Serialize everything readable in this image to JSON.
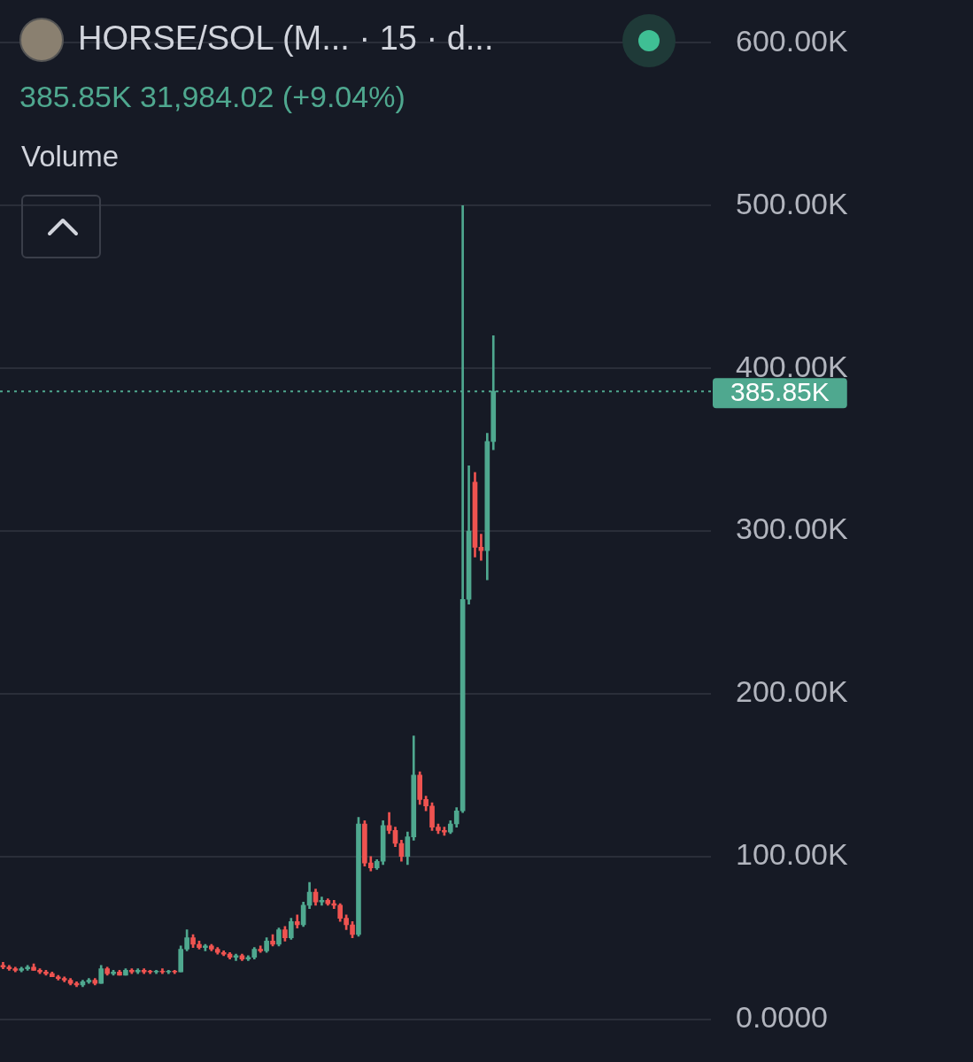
{
  "chart_data": {
    "type": "candlestick",
    "title": "HORSE/SOL (M... · 15 · d...",
    "subtitle": "385.85K 31,984.02 (+9.04%)",
    "annotations": [
      "Volume"
    ],
    "categories": [
      null,
      null,
      null,
      null,
      null,
      null,
      null,
      null,
      null,
      null,
      null,
      null,
      null,
      null,
      null,
      null,
      null,
      null,
      null,
      null,
      null,
      null,
      null,
      null,
      null,
      null,
      null,
      null,
      null,
      null,
      null,
      null,
      null,
      null,
      null,
      null,
      null,
      null,
      null,
      null,
      null,
      null,
      null,
      null,
      null,
      null,
      null,
      null,
      null,
      null,
      null,
      null,
      null,
      null,
      null,
      null,
      null,
      null,
      null,
      null,
      null,
      null,
      null,
      null,
      null,
      null,
      null,
      null,
      null,
      null,
      null,
      null,
      null,
      null,
      null,
      null,
      null,
      null,
      null,
      null,
      null,
      null,
      null,
      null,
      null,
      null,
      null,
      null,
      null,
      null,
      null,
      null,
      null,
      null,
      null,
      null,
      null,
      null,
      null,
      null,
      null,
      null,
      null,
      null,
      null,
      null,
      null,
      null,
      null,
      null,
      null,
      null,
      null,
      null,
      null,
      null
    ],
    "open": [
      33000,
      32000,
      31000,
      30000,
      31000,
      32000,
      30000,
      29000,
      28000,
      26000,
      25000,
      24000,
      22000,
      21000,
      23000,
      24000,
      22000,
      31000,
      28000,
      29000,
      27000,
      30000,
      29000,
      30000,
      29500,
      29000,
      29500,
      29000,
      29500,
      29000,
      43000,
      50000,
      46000,
      44000,
      45000,
      43000,
      41000,
      40000,
      38000,
      39000,
      37000,
      38000,
      43000,
      42000,
      48000,
      46000,
      55000,
      50000,
      60000,
      58000,
      70000,
      78000,
      72000,
      73000,
      71000,
      70000,
      62000,
      58000,
      52000,
      120000,
      96000,
      93000,
      97000,
      119000,
      116000,
      108000,
      100000,
      112000,
      150000,
      135000,
      131000,
      118000,
      116000,
      115000,
      120000,
      128000,
      258000,
      330000,
      290000,
      288000,
      355000,
      null,
      null,
      null,
      null,
      null,
      null,
      null,
      null,
      null,
      null,
      null,
      null,
      null,
      null,
      null,
      null,
      null,
      null,
      null,
      null,
      null,
      null,
      null,
      null,
      null,
      null,
      null,
      null,
      null,
      null,
      null,
      null,
      null,
      null,
      null
    ],
    "high": [
      35000,
      33000,
      32000,
      32000,
      33000,
      34000,
      31000,
      30000,
      29000,
      27000,
      26000,
      25000,
      23000,
      24000,
      25000,
      25000,
      33000,
      32000,
      30000,
      30000,
      31000,
      31000,
      31000,
      31000,
      30000,
      30000,
      31000,
      30000,
      30000,
      45000,
      55000,
      52000,
      48000,
      46000,
      46000,
      44000,
      42000,
      41000,
      40000,
      40000,
      39000,
      44000,
      45000,
      50000,
      52000,
      56000,
      57000,
      62000,
      64000,
      72000,
      84000,
      80000,
      75000,
      74000,
      73000,
      71000,
      64000,
      60000,
      124000,
      122000,
      100000,
      98000,
      122000,
      127000,
      118000,
      110000,
      115000,
      174000,
      152000,
      137000,
      133000,
      120000,
      118000,
      122000,
      130000,
      500000,
      340000,
      336000,
      298000,
      360000,
      420000,
      null,
      null,
      null,
      null,
      null,
      null,
      null,
      null,
      null,
      null,
      null,
      null,
      null,
      null,
      null,
      null,
      null,
      null,
      null,
      null,
      null,
      null,
      null,
      null,
      null,
      null,
      null,
      null,
      null,
      null,
      null,
      null,
      null,
      null,
      null
    ],
    "low": [
      31000,
      30000,
      29000,
      29000,
      30000,
      30000,
      28000,
      27000,
      26000,
      24000,
      23000,
      21000,
      20000,
      20000,
      22000,
      21000,
      22000,
      27000,
      27000,
      27000,
      27000,
      28000,
      28000,
      28000,
      28000,
      28000,
      28000,
      28000,
      28000,
      29000,
      42000,
      44000,
      43000,
      42000,
      42000,
      40000,
      39000,
      37000,
      36000,
      36000,
      36000,
      37000,
      41000,
      41000,
      45000,
      45000,
      48000,
      49000,
      56000,
      57000,
      68000,
      70000,
      70000,
      70000,
      68000,
      60000,
      55000,
      50000,
      51000,
      94000,
      91000,
      92000,
      95000,
      114000,
      106000,
      97000,
      95000,
      110000,
      132000,
      128000,
      116000,
      114000,
      113000,
      114000,
      118000,
      127000,
      255000,
      284000,
      282000,
      270000,
      350000,
      null,
      null,
      null,
      null,
      null,
      null,
      null,
      null,
      null,
      null,
      null,
      null,
      null,
      null,
      null,
      null,
      null,
      null,
      null,
      null,
      null,
      null,
      null,
      null,
      null,
      null,
      null,
      null,
      null,
      null,
      null,
      null,
      null,
      null,
      null
    ],
    "close": [
      32000,
      31000,
      30000,
      31000,
      32000,
      30000,
      29000,
      28000,
      26000,
      25000,
      24000,
      22000,
      21000,
      23000,
      24000,
      22000,
      31000,
      28000,
      29000,
      27000,
      30000,
      29000,
      30000,
      29000,
      29000,
      29500,
      29000,
      29500,
      29000,
      43000,
      50000,
      46000,
      44000,
      45000,
      43000,
      41000,
      40000,
      38000,
      39000,
      37000,
      38000,
      43000,
      42000,
      48000,
      46000,
      55000,
      50000,
      60000,
      58000,
      70000,
      78000,
      72000,
      73000,
      71000,
      70000,
      62000,
      58000,
      52000,
      120000,
      96000,
      93000,
      97000,
      119000,
      116000,
      108000,
      100000,
      112000,
      150000,
      135000,
      131000,
      118000,
      116000,
      115000,
      120000,
      128000,
      258000,
      300000,
      290000,
      288000,
      355000,
      385850,
      null,
      null,
      null,
      null,
      null,
      null,
      null,
      null,
      null,
      null,
      null,
      null,
      null,
      null,
      null,
      null,
      null,
      null,
      null,
      null,
      null,
      null,
      null,
      null,
      null,
      null,
      null,
      null,
      null,
      null,
      null,
      null,
      null,
      null,
      null
    ],
    "colors": [
      "#ef5350",
      "#ef5350",
      "#ef5350",
      "#4fa88f",
      "#4fa88f",
      "#ef5350",
      "#ef5350",
      "#ef5350",
      "#ef5350",
      "#ef5350",
      "#ef5350",
      "#ef5350",
      "#ef5350",
      "#4fa88f",
      "#4fa88f",
      "#ef5350",
      "#4fa88f",
      "#ef5350",
      "#4fa88f",
      "#ef5350",
      "#4fa88f",
      "#ef5350",
      "#4fa88f",
      "#ef5350",
      "#ef5350",
      "#4fa88f",
      "#ef5350",
      "#4fa88f",
      "#ef5350",
      "#4fa88f",
      "#4fa88f",
      "#ef5350",
      "#ef5350",
      "#4fa88f",
      "#ef5350",
      "#ef5350",
      "#ef5350",
      "#ef5350",
      "#4fa88f",
      "#ef5350",
      "#4fa88f",
      "#4fa88f",
      "#ef5350",
      "#4fa88f",
      "#ef5350",
      "#4fa88f",
      "#ef5350",
      "#4fa88f",
      "#ef5350",
      "#4fa88f",
      "#4fa88f",
      "#ef5350",
      "#4fa88f",
      "#ef5350",
      "#ef5350",
      "#ef5350",
      "#ef5350",
      "#ef5350",
      "#4fa88f",
      "#ef5350",
      "#ef5350",
      "#4fa88f",
      "#4fa88f",
      "#ef5350",
      "#ef5350",
      "#ef5350",
      "#4fa88f",
      "#4fa88f",
      "#ef5350",
      "#ef5350",
      "#ef5350",
      "#ef5350",
      "#ef5350",
      "#4fa88f",
      "#4fa88f",
      "#4fa88f",
      "#4fa88f",
      "#ef5350",
      "#ef5350",
      "#4fa88f",
      "#4fa88f",
      null,
      null,
      null,
      null,
      null,
      null,
      null,
      null,
      null,
      null,
      null,
      null,
      null,
      null,
      null,
      null,
      null,
      null,
      null,
      null,
      null,
      null,
      null,
      null,
      null,
      null,
      null,
      null,
      null,
      null,
      null,
      null,
      null,
      null,
      null
    ],
    "price_line": {
      "value": 385850,
      "label": "385.85K",
      "color": "#4fa88f"
    },
    "ylim": [
      0,
      600000
    ],
    "yticks": [
      {
        "value": 0,
        "label": "0.0000"
      },
      {
        "value": 100000,
        "label": "100.00K"
      },
      {
        "value": 200000,
        "label": "200.00K"
      },
      {
        "value": 300000,
        "label": "300.00K"
      },
      {
        "value": 400000,
        "label": "400.00K"
      },
      {
        "value": 500000,
        "label": "500.00K"
      },
      {
        "value": 600000,
        "label": "600.00K"
      }
    ],
    "grid": true,
    "tick_labels": "y"
  }
}
